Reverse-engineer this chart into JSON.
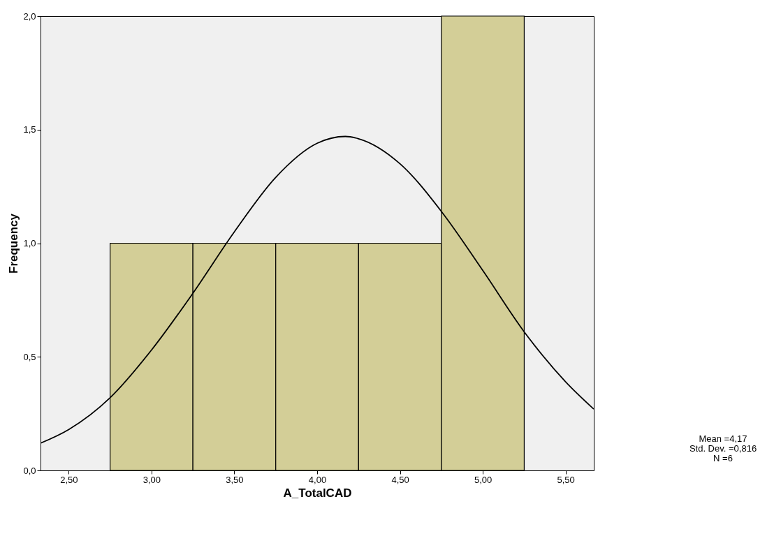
{
  "chart_data": {
    "type": "histogram",
    "xlabel": "A_TotalCAD",
    "ylabel": "Frequency",
    "bins": [
      2.75,
      3.25,
      3.75,
      4.25,
      4.75,
      5.25
    ],
    "values": [
      1,
      1,
      1,
      1,
      2
    ],
    "color": "#d3ce97",
    "series": [
      {
        "type": "line",
        "color": "#000000",
        "x": [
          2.33,
          2.5,
          2.75,
          3.0,
          3.25,
          3.5,
          3.75,
          4.0,
          4.17,
          4.25,
          4.5,
          4.75,
          5.0,
          5.25,
          5.5,
          5.67
        ],
        "values": [
          0.12,
          0.18,
          0.32,
          0.53,
          0.78,
          1.05,
          1.29,
          1.44,
          1.47,
          1.46,
          1.35,
          1.14,
          0.88,
          0.61,
          0.39,
          0.27
        ]
      }
    ],
    "xlim": [
      2.33,
      5.67
    ],
    "ylim": [
      0,
      2.0
    ],
    "xticks": [
      {
        "value": 2.5,
        "label": "2,50"
      },
      {
        "value": 3.0,
        "label": "3,00"
      },
      {
        "value": 3.5,
        "label": "3,50"
      },
      {
        "value": 4.0,
        "label": "4,00"
      },
      {
        "value": 4.5,
        "label": "4,50"
      },
      {
        "value": 5.0,
        "label": "5,00"
      },
      {
        "value": 5.5,
        "label": "5,50"
      }
    ],
    "yticks": [
      {
        "value": 0,
        "label": "0,0"
      },
      {
        "value": 0.5,
        "label": "0,5"
      },
      {
        "value": 1.0,
        "label": "1,0"
      },
      {
        "value": 1.5,
        "label": "1,5"
      },
      {
        "value": 2.0,
        "label": "2,0"
      }
    ],
    "annotations": [
      "Mean =4,17",
      "Std. Dev. =0,816",
      "N =6"
    ],
    "grid": false
  }
}
